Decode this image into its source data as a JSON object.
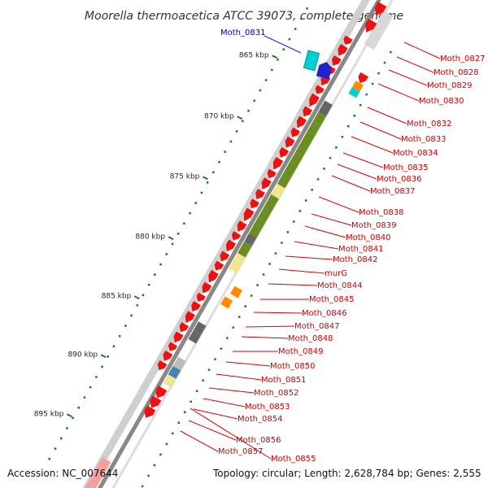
{
  "title": "Moorella thermoacetica ATCC 39073, complete genome",
  "accession": "Accession: NC_007644",
  "topology": "Topology: circular; Length: 2,628,784 bp; Genes: 2,555",
  "selected_gene": "Moth_0831",
  "ticks": [
    "865 kbp",
    "870 kbp",
    "875 kbp",
    "880 kbp",
    "885 kbp",
    "890 kbp",
    "895 kbp"
  ],
  "gene_labels": [
    "Moth_0827",
    "Moth_0828",
    "Moth_0829",
    "Moth_0830",
    "Moth_0832",
    "Moth_0833",
    "Moth_0834",
    "Moth_0835",
    "Moth_0836",
    "Moth_0837",
    "Moth_0838",
    "Moth_0839",
    "Moth_0840",
    "Moth_0841",
    "Moth_0842",
    "murG",
    "Moth_0844",
    "Moth_0845",
    "Moth_0846",
    "Moth_0847",
    "Moth_0848",
    "Moth_0849",
    "Moth_0850",
    "Moth_0851",
    "Moth_0852",
    "Moth_0853",
    "Moth_0854",
    "Moth_0856",
    "Moth_0857",
    "Moth_0855"
  ],
  "colors": {
    "forward_gene": "#ee1111",
    "cog_green": "#6b8e23",
    "cog_yellow": "#f0e68c",
    "cog_grey": "#666666",
    "cog_orange": "#ff8c00",
    "cog_cyan": "#00ced1",
    "cog_blue": "#2222cc",
    "cog_steel": "#4682b4",
    "backbone": "#888888",
    "tick_green": "#1a7a1a"
  }
}
